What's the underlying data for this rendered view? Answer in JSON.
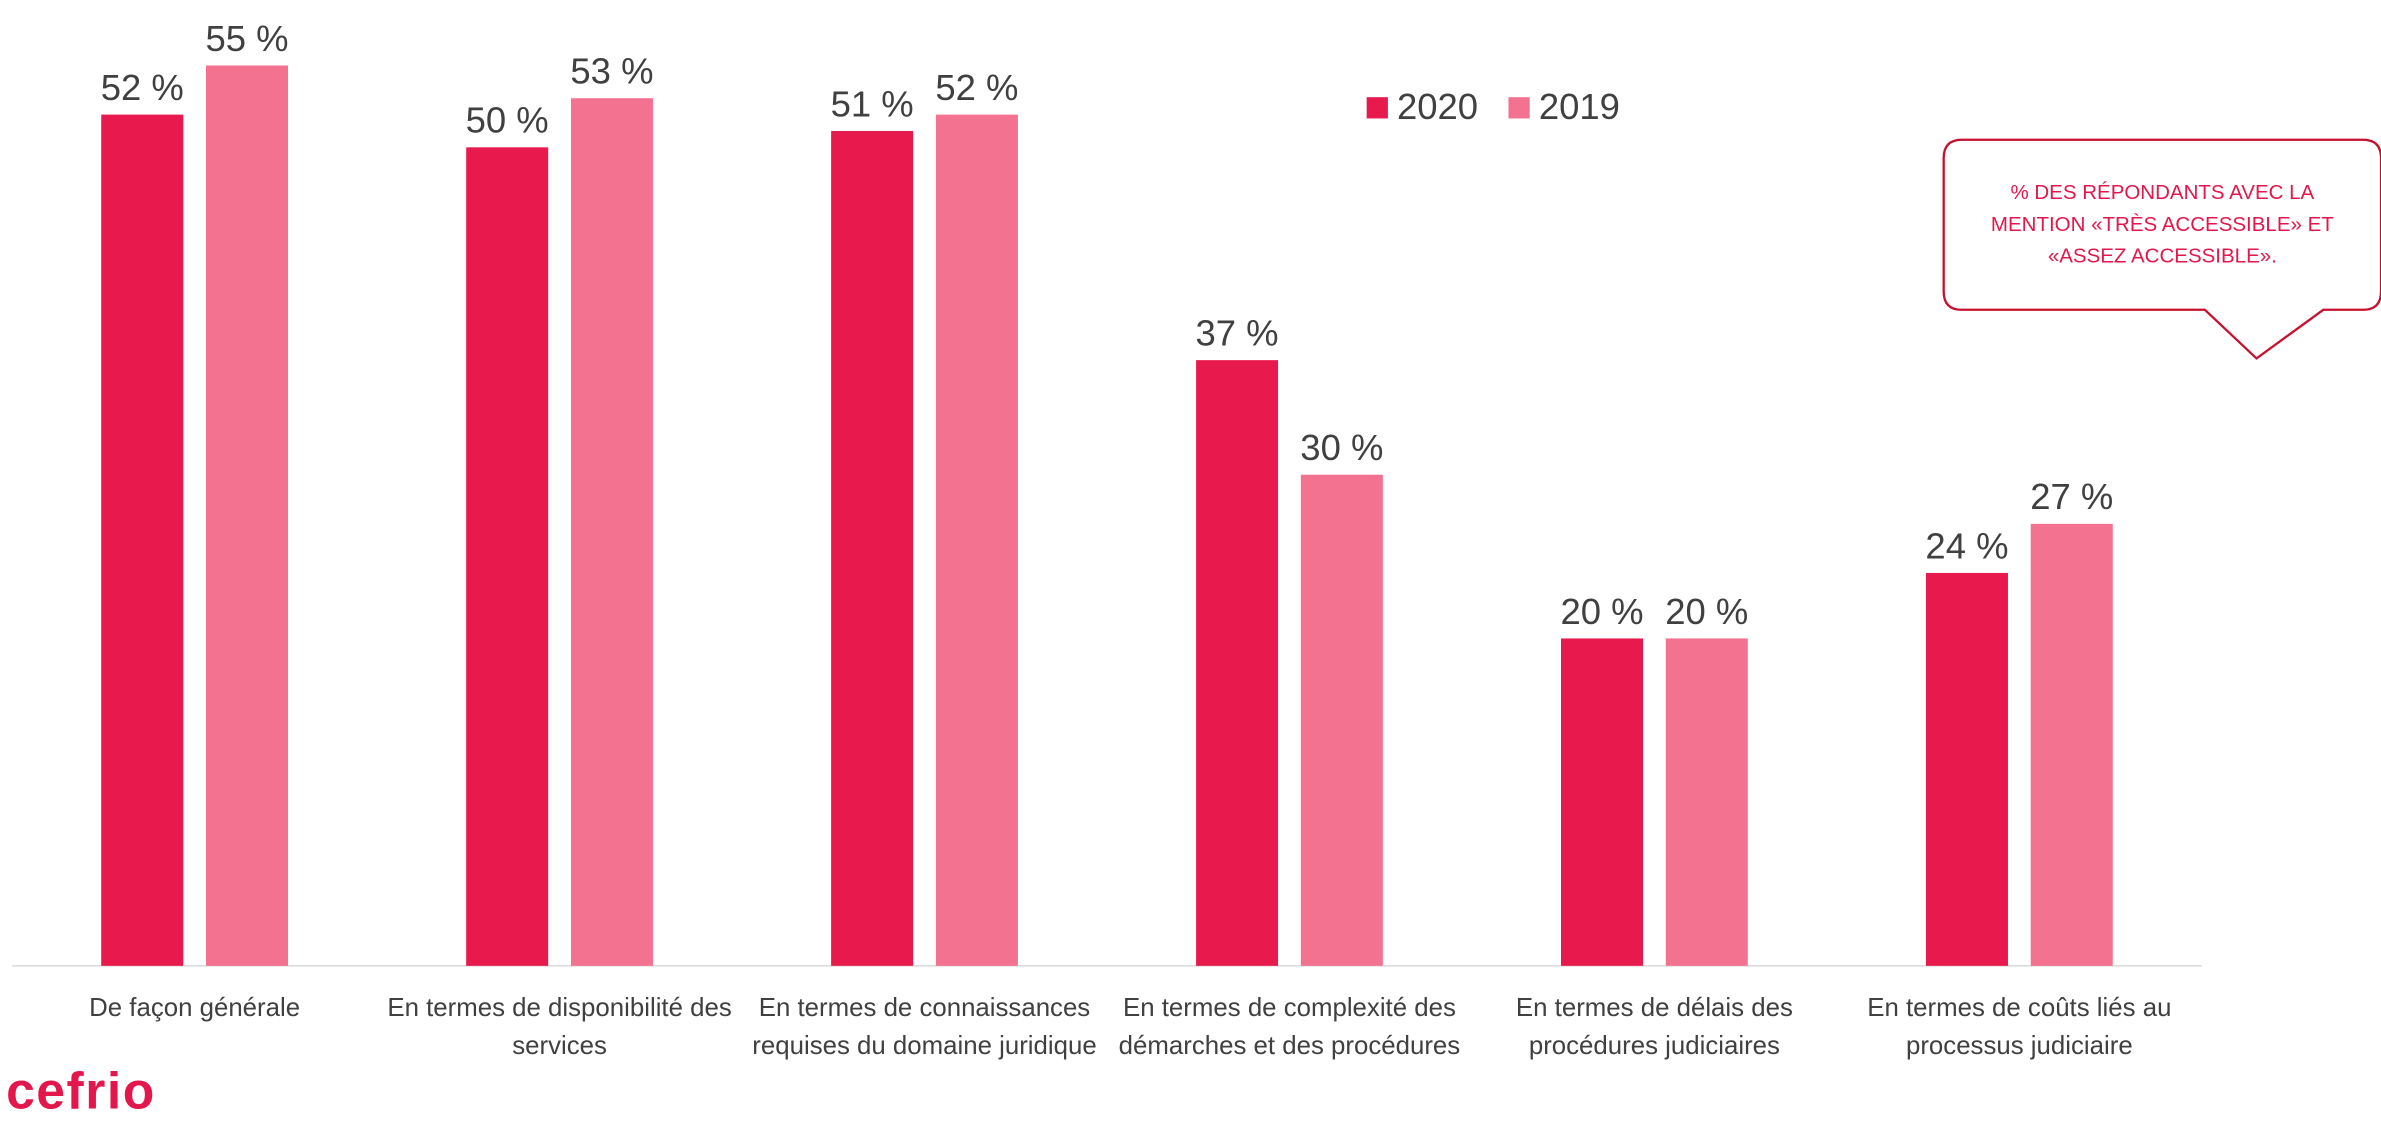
{
  "chart_data": {
    "type": "bar",
    "categories": [
      "De façon générale",
      "En termes de disponibilité des services",
      "En termes de connaissances requises du domaine juridique",
      "En termes de complexité des démarches et des procédures",
      "En termes de délais des procédures judiciaires",
      "En termes de coûts liés au processus judiciaire"
    ],
    "series": [
      {
        "name": "2020",
        "color": "#e8194c",
        "values": [
          52,
          50,
          51,
          37,
          20,
          24
        ],
        "value_labels": [
          "52 %",
          "50 %",
          "51 %",
          "37 %",
          "20 %",
          "24 %"
        ]
      },
      {
        "name": "2019",
        "color": "#f3728f",
        "values": [
          55,
          53,
          52,
          30,
          20,
          27
        ],
        "value_labels": [
          "55 %",
          "53 %",
          "52 %",
          "30 %",
          "20 %",
          "27 %"
        ]
      }
    ],
    "ylim": [
      0,
      59
    ],
    "legend": "top",
    "annotation": "% DES RÉPONDANTS AVEC LA MENTION «TRÈS ACCESSIBLE» ET «ASSEZ ACCESSIBLE».",
    "logo": "cefrio"
  }
}
